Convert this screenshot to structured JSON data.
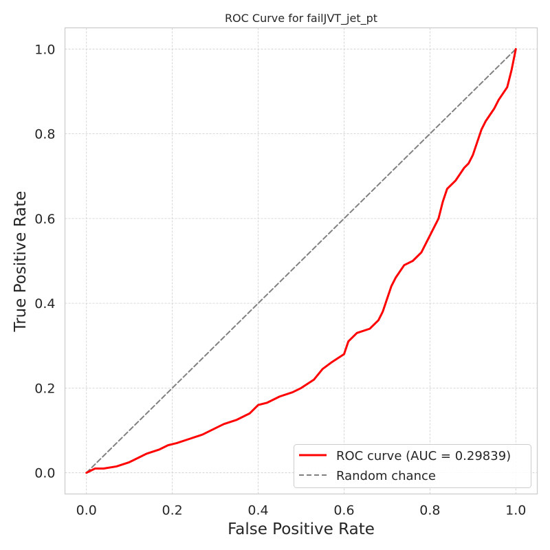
{
  "colors": {
    "roc_line": "#ff0000",
    "random_line": "#808080",
    "grid": "#cccccc",
    "frame": "#cccccc",
    "text": "#262626"
  },
  "chart_data": {
    "type": "line",
    "title": "ROC Curve for failJVT_jet_pt",
    "xlabel": "False Positive Rate",
    "ylabel": "True Positive Rate",
    "xlim": [
      -0.05,
      1.05
    ],
    "ylim": [
      -0.05,
      1.05
    ],
    "xticks": [
      0.0,
      0.2,
      0.4,
      0.6,
      0.8,
      1.0
    ],
    "yticks": [
      0.0,
      0.2,
      0.4,
      0.6,
      0.8,
      1.0
    ],
    "xtick_labels": [
      "0.0",
      "0.2",
      "0.4",
      "0.6",
      "0.8",
      "1.0"
    ],
    "ytick_labels": [
      "0.0",
      "0.2",
      "0.4",
      "0.6",
      "0.8",
      "1.0"
    ],
    "grid": true,
    "legend_position": "lower-right",
    "series": [
      {
        "name": "ROC curve (AUC = 0.29839)",
        "style": "solid",
        "color": "#ff0000",
        "x": [
          0.0,
          0.02,
          0.04,
          0.07,
          0.1,
          0.12,
          0.14,
          0.17,
          0.19,
          0.21,
          0.24,
          0.27,
          0.3,
          0.32,
          0.35,
          0.38,
          0.4,
          0.42,
          0.45,
          0.48,
          0.5,
          0.53,
          0.55,
          0.57,
          0.6,
          0.61,
          0.63,
          0.66,
          0.68,
          0.69,
          0.7,
          0.71,
          0.72,
          0.74,
          0.76,
          0.78,
          0.79,
          0.8,
          0.81,
          0.82,
          0.83,
          0.84,
          0.86,
          0.88,
          0.89,
          0.9,
          0.91,
          0.92,
          0.93,
          0.95,
          0.96,
          0.98,
          0.99,
          1.0
        ],
        "y": [
          0.0,
          0.01,
          0.01,
          0.015,
          0.025,
          0.035,
          0.045,
          0.055,
          0.065,
          0.07,
          0.08,
          0.09,
          0.105,
          0.115,
          0.125,
          0.14,
          0.16,
          0.165,
          0.18,
          0.19,
          0.2,
          0.22,
          0.245,
          0.26,
          0.28,
          0.31,
          0.33,
          0.34,
          0.36,
          0.38,
          0.41,
          0.44,
          0.46,
          0.49,
          0.5,
          0.52,
          0.54,
          0.56,
          0.58,
          0.6,
          0.64,
          0.67,
          0.69,
          0.72,
          0.73,
          0.75,
          0.78,
          0.81,
          0.83,
          0.86,
          0.88,
          0.91,
          0.95,
          1.0
        ]
      },
      {
        "name": "Random chance",
        "style": "dashed",
        "color": "#808080",
        "x": [
          0.0,
          1.0
        ],
        "y": [
          0.0,
          1.0
        ]
      }
    ]
  }
}
